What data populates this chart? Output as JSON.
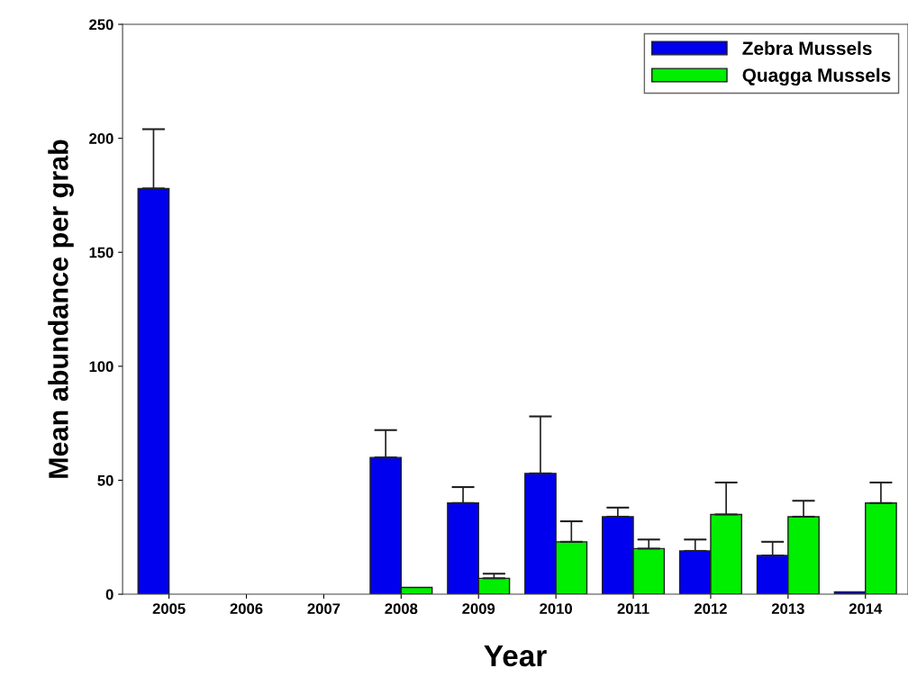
{
  "chart_data": {
    "type": "bar",
    "xlabel": "Year",
    "ylabel": "Mean abundance per grab",
    "categories": [
      "2005",
      "2006",
      "2007",
      "2008",
      "2009",
      "2010",
      "2011",
      "2012",
      "2013",
      "2014"
    ],
    "series": [
      {
        "name": "Zebra Mussels",
        "color": "#0000ee",
        "values": [
          178,
          null,
          null,
          60,
          40,
          53,
          34,
          19,
          17,
          1
        ],
        "errors": [
          [
            178,
            204
          ],
          null,
          null,
          [
            60,
            72
          ],
          [
            40,
            47
          ],
          [
            53,
            78
          ],
          [
            34,
            38
          ],
          [
            19,
            24
          ],
          [
            17,
            23
          ],
          null
        ]
      },
      {
        "name": "Quagga Mussels",
        "color": "#00ee00",
        "values": [
          null,
          null,
          null,
          3,
          7,
          23,
          20,
          35,
          34,
          40
        ],
        "errors": [
          null,
          null,
          null,
          null,
          [
            7,
            9
          ],
          [
            23,
            32
          ],
          [
            20,
            24
          ],
          [
            35,
            49
          ],
          [
            34,
            41
          ],
          [
            40,
            49
          ]
        ]
      }
    ],
    "ylim": [
      0,
      250
    ],
    "yticks": [
      0,
      50,
      100,
      150,
      200,
      250
    ],
    "grid": false,
    "legend": "top right"
  }
}
